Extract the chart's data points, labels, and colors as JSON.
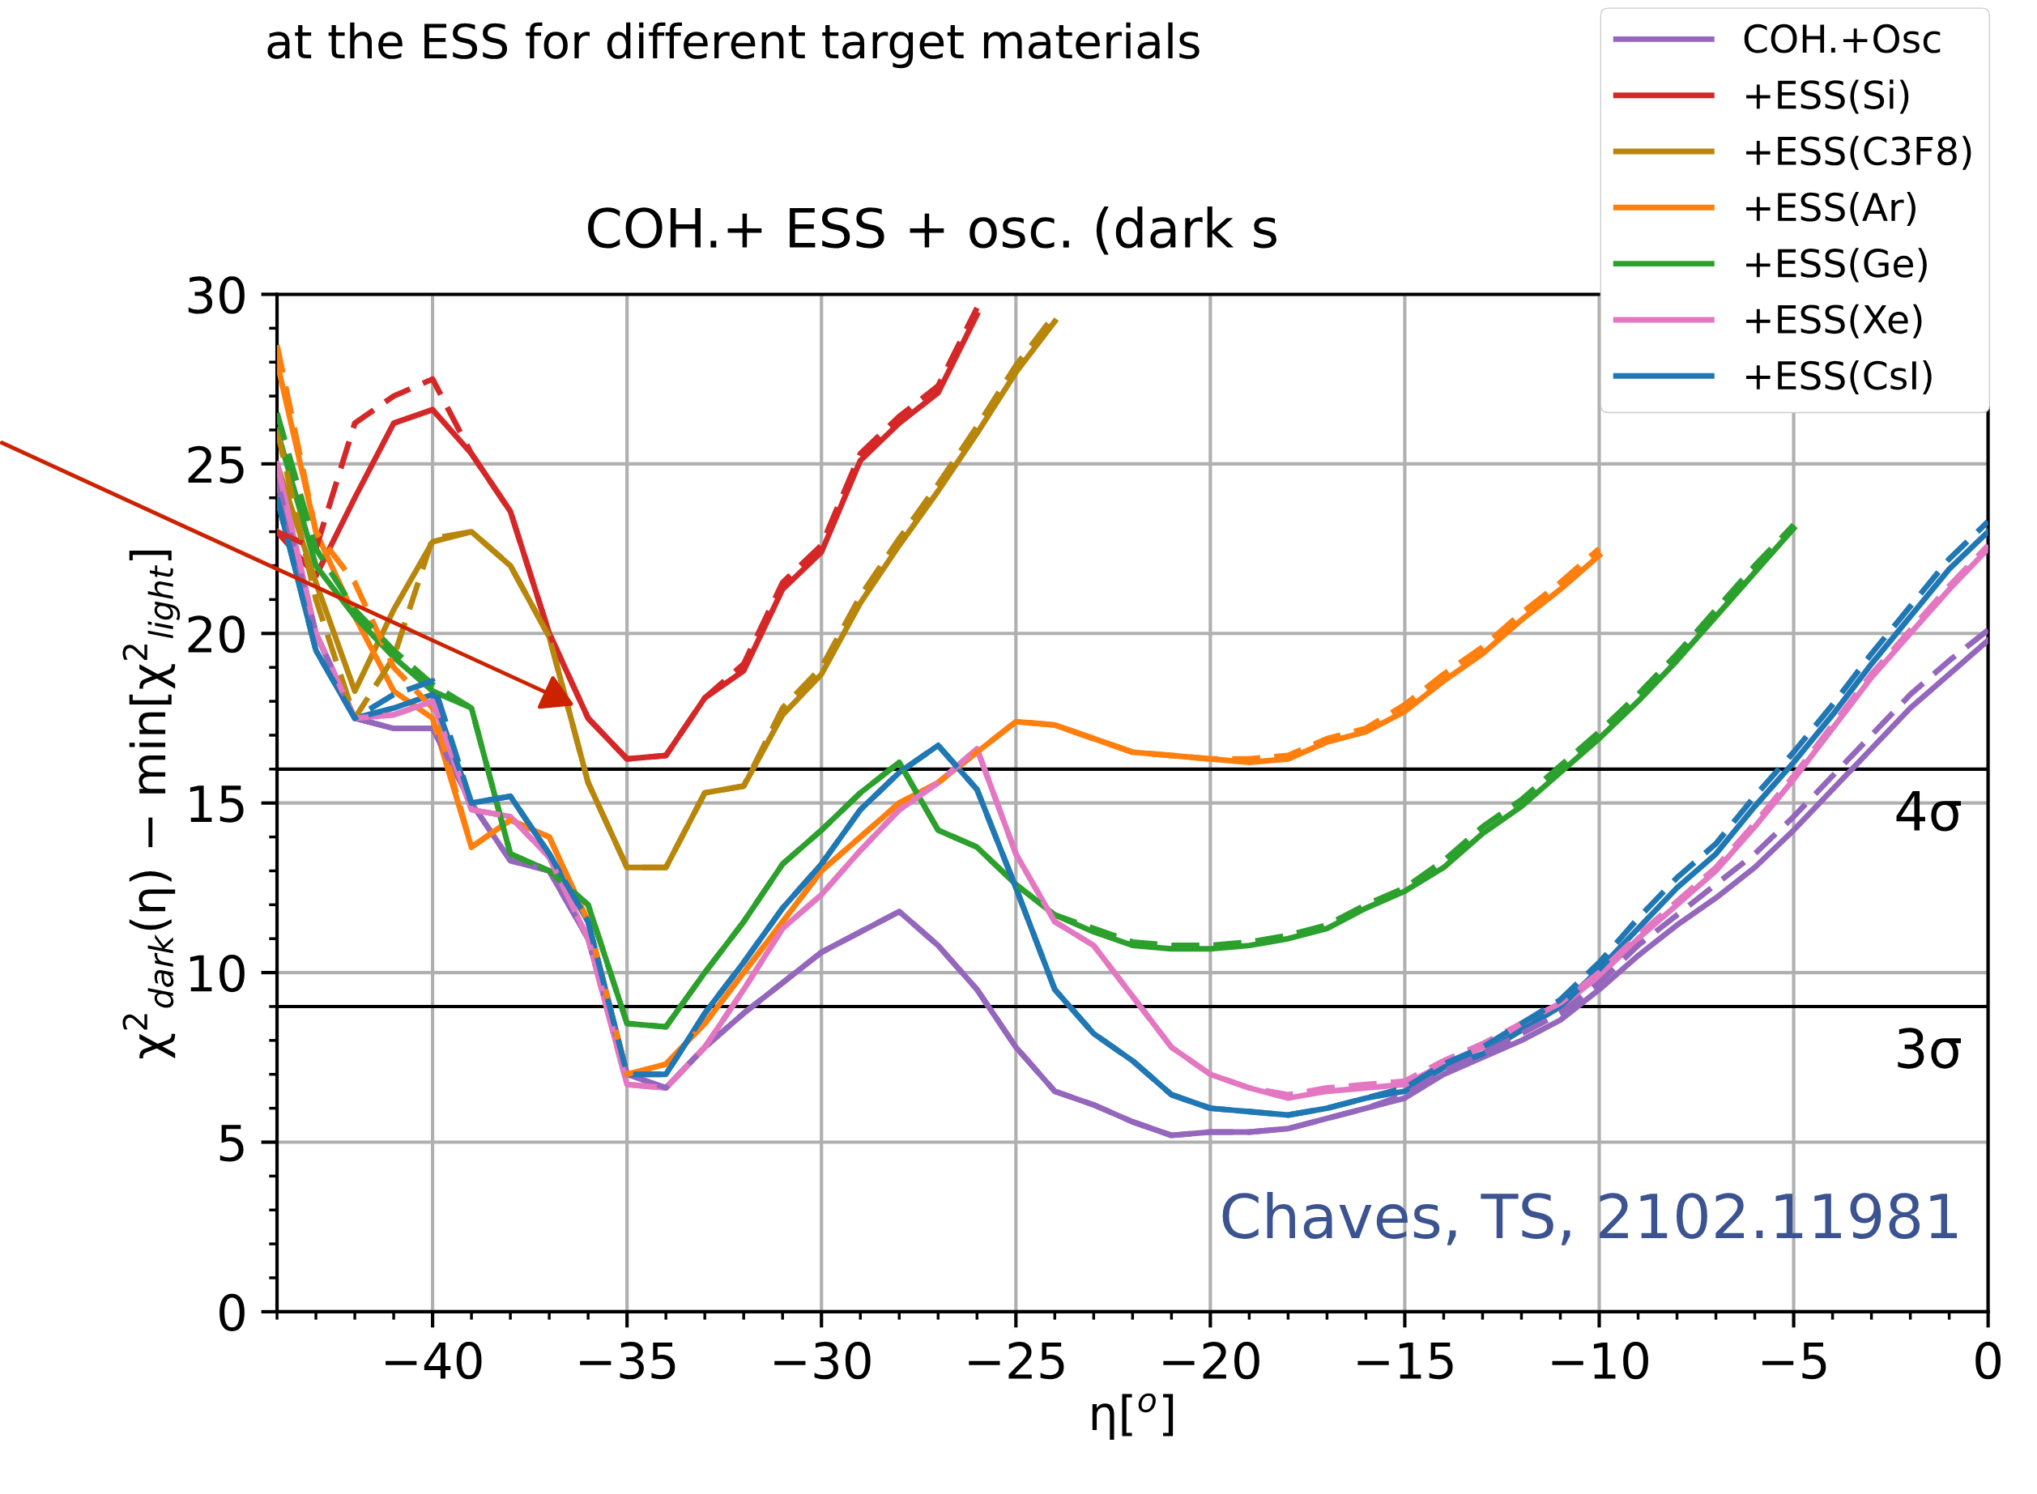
{
  "chart_data": {
    "type": "line",
    "title": "COH.+ ESS + osc. (dark s",
    "xlabel": "η[$^{o}$]",
    "ylabel": "χ$^{2}$$_{dark}$(η) − min[χ$^{2}$$_{light}$]",
    "x": [
      -44,
      -43,
      -42,
      -41,
      -40,
      -39,
      -38,
      -37,
      -36,
      -35,
      -34,
      -33,
      -32,
      -31,
      -30,
      -29,
      -28,
      -27,
      -26,
      -25,
      -24,
      -23,
      -22,
      -21,
      -20,
      -19,
      -18,
      -17,
      -16,
      -15,
      -14,
      -13,
      -12,
      -11,
      -10,
      -9,
      -8,
      -7,
      -6,
      -5,
      -4,
      -3,
      -2,
      -1,
      0
    ],
    "series": [
      {
        "name": "COH.+Osc",
        "color": "#9467bd",
        "values": [
          24.5,
          20,
          17.5,
          17.2,
          17.2,
          15,
          13.3,
          13,
          11,
          7,
          6.6,
          7.8,
          8.8,
          9.7,
          10.6,
          11.2,
          11.8,
          10.8,
          9.5,
          7.8,
          6.5,
          6.1,
          5.6,
          5.2,
          5.3,
          5.3,
          5.4,
          5.7,
          6.0,
          6.3,
          7.0,
          7.5,
          8.0,
          8.6,
          9.5,
          10.5,
          11.4,
          12.2,
          13.1,
          14.2,
          15.4,
          16.6,
          17.8,
          18.8,
          19.8
        ]
      },
      {
        "name": "+ESS(Si)",
        "color": "#d62728",
        "values": [
          23,
          21.7,
          24,
          26.2,
          26.6,
          25.3,
          23.6,
          20,
          17.5,
          16.3,
          16.4,
          18.1,
          18.9,
          21.3,
          22.4,
          25.1,
          26.2,
          27.1,
          29.4,
          null,
          null,
          null,
          null,
          null,
          null,
          null,
          null,
          null,
          null,
          null,
          null,
          null,
          null,
          null,
          null,
          null,
          null,
          null,
          null,
          null,
          null,
          null,
          null,
          null,
          null
        ]
      },
      {
        "name": "+ESS(C3F8)",
        "color": "#b8860b",
        "values": [
          25,
          21.5,
          18.3,
          20.7,
          22.7,
          23,
          22,
          19.9,
          15.6,
          13.1,
          13.1,
          15.3,
          15.5,
          17.6,
          18.8,
          20.9,
          22.6,
          24.2,
          25.9,
          27.7,
          29.2,
          null,
          null,
          null,
          null,
          null,
          null,
          null,
          null,
          null,
          null,
          null,
          null,
          null,
          null,
          null,
          null,
          null,
          null,
          null,
          null,
          null,
          null,
          null,
          null
        ]
      },
      {
        "name": "+ESS(Ar)",
        "color": "#ff7f0e",
        "values": [
          28,
          23,
          20.5,
          18.3,
          17.5,
          13.7,
          14.5,
          14,
          11.5,
          7.0,
          7.3,
          8.5,
          10,
          11.5,
          13,
          14,
          15,
          15.6,
          16.5,
          17.4,
          17.3,
          16.9,
          16.5,
          16.4,
          16.3,
          16.2,
          16.3,
          16.8,
          17.1,
          17.7,
          18.6,
          19.4,
          20.4,
          21.3,
          22.3,
          null,
          null,
          null,
          null,
          null,
          null,
          null,
          null,
          null,
          null
        ]
      },
      {
        "name": "+ESS(Ge)",
        "color": "#2ca02c",
        "values": [
          26,
          22,
          20.5,
          19.3,
          18.3,
          17.8,
          13.5,
          13,
          12,
          8.5,
          8.4,
          10,
          11.5,
          13.2,
          14.2,
          15.3,
          16.2,
          14.2,
          13.7,
          12.6,
          11.7,
          11.2,
          10.8,
          10.7,
          10.7,
          10.8,
          11.0,
          11.3,
          11.9,
          12.4,
          13.1,
          14.1,
          14.9,
          15.9,
          16.9,
          18.0,
          19.2,
          20.5,
          21.8,
          23.1,
          null,
          null,
          null,
          null,
          null
        ]
      },
      {
        "name": "+ESS(Xe)",
        "color": "#e377c2",
        "values": [
          25,
          20,
          17.5,
          17.6,
          18,
          14.8,
          14.6,
          13.4,
          11,
          6.7,
          6.6,
          7.8,
          9.5,
          11.3,
          12.3,
          13.6,
          14.8,
          15.6,
          16.6,
          13.5,
          11.5,
          10.8,
          9.3,
          7.8,
          7.0,
          6.6,
          6.3,
          6.5,
          6.6,
          6.7,
          7.3,
          7.8,
          8.4,
          9.0,
          9.9,
          11.0,
          12.0,
          13.0,
          14.3,
          15.7,
          17.2,
          18.7,
          20.0,
          21.3,
          22.5
        ]
      },
      {
        "name": "+ESS(CsI)",
        "color": "#1f77b4",
        "values": [
          24,
          19.5,
          17.5,
          17.8,
          18.2,
          15,
          15.2,
          13.5,
          11.5,
          7.0,
          7.0,
          8.8,
          10.3,
          11.9,
          13.2,
          14.8,
          15.9,
          16.7,
          15.4,
          12.5,
          9.5,
          8.2,
          7.4,
          6.4,
          6.0,
          5.9,
          5.8,
          6.0,
          6.3,
          6.5,
          7.2,
          7.6,
          8.3,
          9.0,
          10.1,
          11.3,
          12.5,
          13.5,
          14.9,
          16.2,
          17.6,
          19.1,
          20.5,
          21.9,
          23.0
        ]
      },
      {
        "color": "#9467bd",
        "line_style": "dashed",
        "values": [
          24.5,
          20,
          17.5,
          17.2,
          17.2,
          15,
          13.3,
          13,
          11,
          7,
          6.6,
          7.8,
          8.8,
          9.7,
          10.6,
          11.2,
          11.8,
          10.8,
          9.5,
          7.8,
          6.5,
          6.1,
          5.6,
          5.2,
          5.3,
          5.3,
          5.4,
          5.7,
          6.0,
          6.4,
          7.1,
          7.6,
          8.2,
          8.8,
          9.7,
          10.8,
          11.7,
          12.6,
          13.5,
          14.6,
          15.8,
          17.0,
          18.2,
          19.2,
          20.1
        ]
      },
      {
        "color": "#d62728",
        "line_style": "dashed",
        "values": [
          23,
          22.5,
          26.2,
          27,
          27.5,
          25.3,
          23.6,
          20,
          17.5,
          16.3,
          16.4,
          18.1,
          19.1,
          21.5,
          22.6,
          25.3,
          26.4,
          27.3,
          29.6,
          null,
          null,
          null,
          null,
          null,
          null,
          null,
          null,
          null,
          null,
          null,
          null,
          null,
          null,
          null,
          null,
          null,
          null,
          null,
          null,
          null,
          null,
          null,
          null,
          null,
          null
        ]
      },
      {
        "color": "#b8860b",
        "line_style": "dashed",
        "values": [
          26,
          21,
          17.5,
          19.3,
          22.8,
          23,
          22,
          19.9,
          15.6,
          13.1,
          13.1,
          15.3,
          15.5,
          17.8,
          19,
          21.1,
          22.8,
          24.4,
          26.1,
          27.9,
          29.4,
          null,
          null,
          null,
          null,
          null,
          null,
          null,
          null,
          null,
          null,
          null,
          null,
          null,
          null,
          null,
          null,
          null,
          null,
          null,
          null,
          null,
          null,
          null,
          null
        ]
      },
      {
        "color": "#ff7f0e",
        "line_style": "dashed",
        "values": [
          28.5,
          23,
          21.5,
          19,
          17.8,
          13.7,
          14.5,
          14,
          11.5,
          7.0,
          7.3,
          8.5,
          10,
          11.5,
          13,
          14,
          15,
          15.6,
          16.5,
          17.4,
          17.3,
          16.9,
          16.5,
          16.4,
          16.3,
          16.3,
          16.4,
          16.9,
          17.2,
          17.9,
          18.8,
          19.6,
          20.6,
          21.5,
          22.5,
          null,
          null,
          null,
          null,
          null,
          null,
          null,
          null,
          null,
          null
        ]
      },
      {
        "color": "#2ca02c",
        "line_style": "dashed",
        "values": [
          26.5,
          22.5,
          20.7,
          19.5,
          18.5,
          17.8,
          13.5,
          13,
          12,
          8.5,
          8.4,
          10,
          11.5,
          13.2,
          14.2,
          15.3,
          16.2,
          14.2,
          13.7,
          12.6,
          11.7,
          11.3,
          10.9,
          10.8,
          10.8,
          10.9,
          11.1,
          11.4,
          12.0,
          12.5,
          13.3,
          14.3,
          15.1,
          16.1,
          17.1,
          18.2,
          19.4,
          20.7,
          22.0,
          23.2,
          null,
          null,
          null,
          null,
          null
        ]
      },
      {
        "color": "#e377c2",
        "line_style": "dashed",
        "values": [
          25,
          20,
          17.5,
          17.6,
          18,
          14.8,
          14.6,
          13.4,
          11,
          6.7,
          6.6,
          7.8,
          9.5,
          11.3,
          12.3,
          13.6,
          14.8,
          15.6,
          16.6,
          13.5,
          11.5,
          10.8,
          9.3,
          7.8,
          7.0,
          6.6,
          6.4,
          6.6,
          6.7,
          6.8,
          7.4,
          7.9,
          8.5,
          9.1,
          10.0,
          11.1,
          12.1,
          13.1,
          14.4,
          15.8,
          17.3,
          18.8,
          20.1,
          21.4,
          22.6
        ]
      },
      {
        "color": "#1f77b4",
        "line_style": "dashed",
        "values": [
          24,
          19.5,
          17.5,
          18.2,
          18.6,
          15,
          15.2,
          13.5,
          11.5,
          7.0,
          7.0,
          8.8,
          10.3,
          11.9,
          13.2,
          14.8,
          15.9,
          16.7,
          15.4,
          12.5,
          9.5,
          8.2,
          7.4,
          6.4,
          6.0,
          5.9,
          5.8,
          6.0,
          6.3,
          6.6,
          7.3,
          7.8,
          8.5,
          9.2,
          10.3,
          11.6,
          12.8,
          13.8,
          15.2,
          16.5,
          17.9,
          19.4,
          20.8,
          22.2,
          23.3
        ]
      }
    ],
    "xlim": [
      -44,
      0
    ],
    "xticks": [
      -40,
      -35,
      -30,
      -25,
      -20,
      -15,
      -10,
      -5,
      0
    ],
    "ylim": [
      0,
      30
    ],
    "yticks": [
      0,
      5,
      10,
      15,
      20,
      25,
      30
    ],
    "grid": true,
    "legend": "top right",
    "marker": "none",
    "line_style": "solid",
    "ref_lines": [
      {
        "axis": "y",
        "value": 9,
        "label": "3σ",
        "color": "#000000"
      },
      {
        "axis": "y",
        "value": 16,
        "label": "4σ",
        "color": "#000000"
      }
    ],
    "annotations": [
      "at the ESS for different target materials",
      "Chaves, TS, 2102.11981"
    ]
  }
}
